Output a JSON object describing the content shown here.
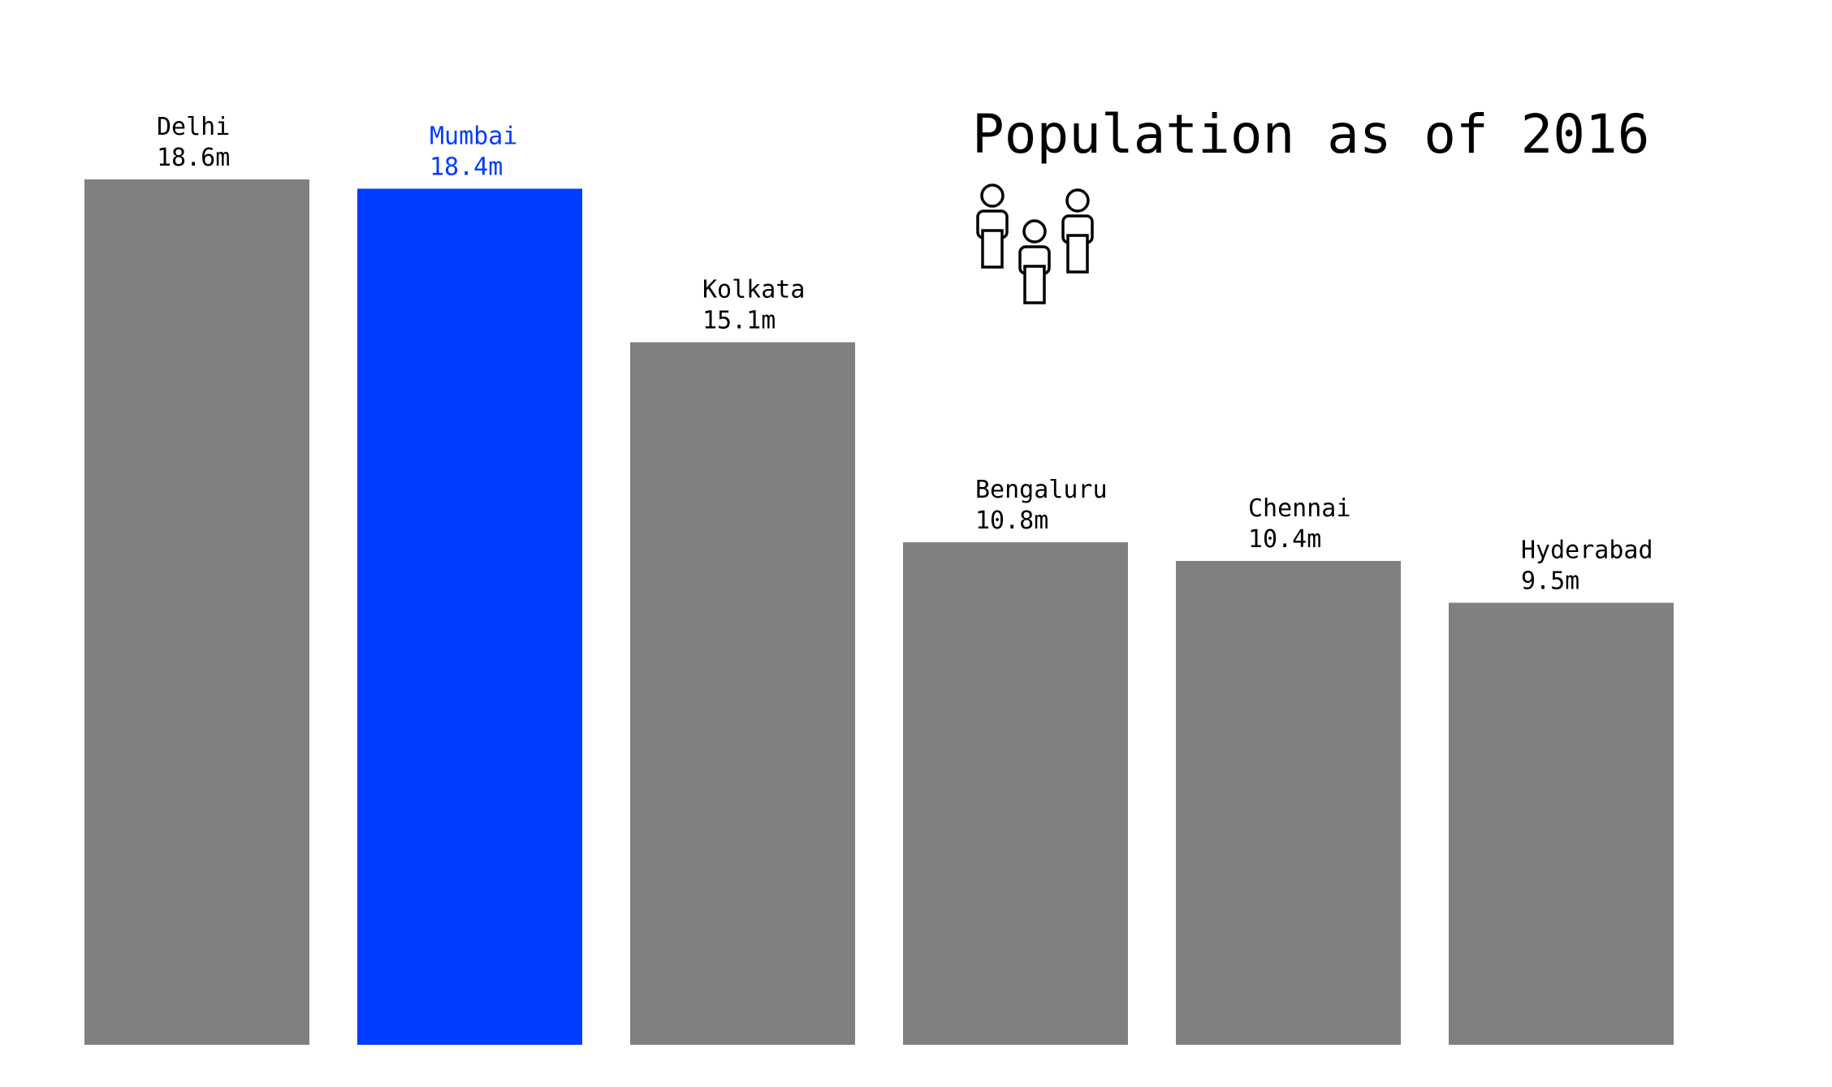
{
  "chart_data": {
    "type": "bar",
    "title": "Population as of 2016",
    "categories": [
      "Delhi",
      "Mumbai",
      "Kolkata",
      "Bengaluru",
      "Chennai",
      "Hyderabad"
    ],
    "values": [
      18.6,
      18.4,
      15.1,
      10.8,
      10.4,
      9.5
    ],
    "value_labels": [
      "18.6m",
      "18.4m",
      "15.1m",
      "10.8m",
      "10.4m",
      "9.5m"
    ],
    "highlight": "Mumbai",
    "ylim": [
      0,
      18.6
    ],
    "grid": false,
    "axes_visible": false,
    "colors": {
      "default_bar": "#808080",
      "highlight_bar": "#003cff",
      "default_label": "#000000",
      "highlight_label": "#003cff"
    },
    "icon": "people-group-icon"
  }
}
